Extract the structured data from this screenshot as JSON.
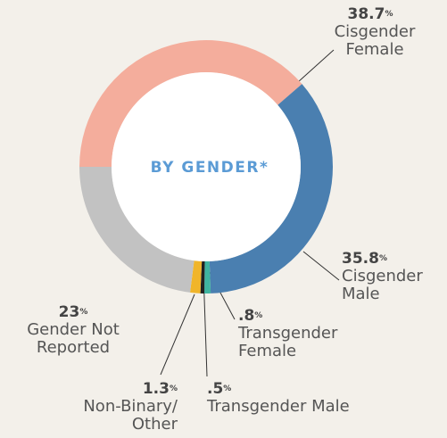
{
  "chart_data": {
    "type": "donut",
    "title": "BY GENDER*",
    "categories": [
      "Cisgender Female",
      "Cisgender Male",
      "Transgender Female",
      "Transgender Male",
      "Non-Binary/ Other",
      "Gender Not Reported"
    ],
    "values": [
      38.7,
      35.8,
      0.8,
      0.5,
      1.3,
      23
    ],
    "value_labels": [
      "38.7",
      "35.8",
      ".8",
      ".5",
      "1.3",
      "23"
    ],
    "unit": "%",
    "colors": [
      "#f4ad9c",
      "#4a7fb0",
      "#3fb4a0",
      "#222222",
      "#f0b52a",
      "#c2c2c2"
    ]
  }
}
